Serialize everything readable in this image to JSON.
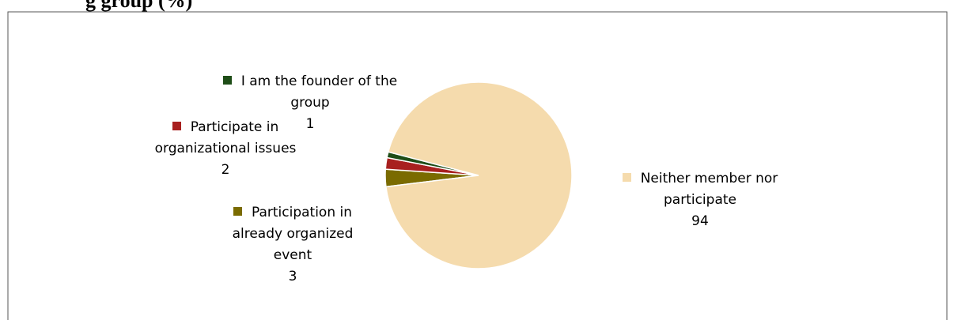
{
  "chart_data": {
    "type": "pie",
    "title": "g group (%)",
    "categories": [
      "I am the founder of the group",
      "Participate in organizational issues",
      "Participation in already organized event",
      "Neither member nor participate"
    ],
    "values": [
      1,
      2,
      3,
      94
    ],
    "colors": [
      "#1e4d17",
      "#a8201f",
      "#7a6b00",
      "#f5dbad"
    ]
  }
}
